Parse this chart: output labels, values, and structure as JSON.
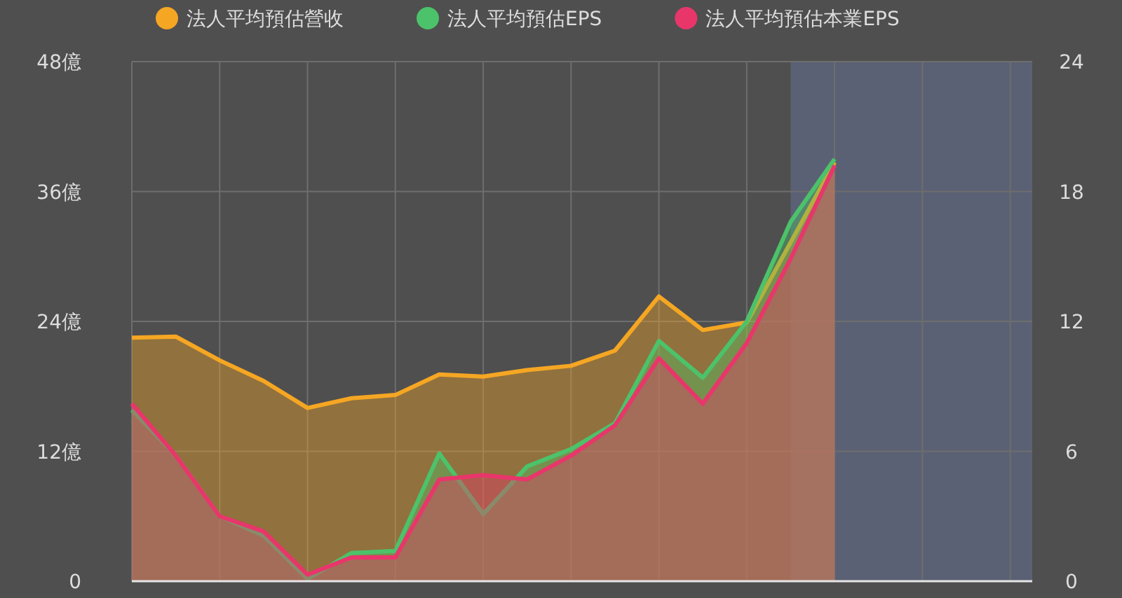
{
  "chart_data": {
    "type": "area",
    "categories": [
      null,
      null,
      null,
      null,
      null,
      null,
      null,
      null,
      null,
      null,
      null,
      null,
      null,
      null,
      null,
      null,
      null,
      null,
      null,
      null,
      null
    ],
    "ylim": [
      0,
      48
    ],
    "yticks": [
      0,
      {
        "value": 12,
        "label": "12億"
      },
      {
        "value": 24,
        "label": "24億"
      },
      {
        "value": 36,
        "label": "36億"
      },
      {
        "value": 48,
        "label": "48億"
      }
    ],
    "y2lim": [
      0,
      24
    ],
    "y2ticks": [
      0,
      6,
      12,
      18,
      24
    ],
    "grid": true,
    "legend": "top",
    "series": [
      {
        "name": "法人平均預估營收",
        "color": "#f5a623",
        "values": [
          22.5,
          22.6,
          20.4,
          18.5,
          16.0,
          16.9,
          17.2,
          19.1,
          18.9,
          19.5,
          19.9,
          21.3,
          26.3,
          23.2,
          23.9,
          31.3,
          38.7,
          null,
          null,
          null,
          null
        ]
      },
      {
        "name": "法人平均預估EPS",
        "color": "#4cc26a",
        "axis": "y2",
        "values": [
          7.9,
          5.8,
          3.0,
          2.1,
          0.1,
          1.3,
          1.4,
          5.9,
          3.1,
          5.3,
          6.1,
          7.3,
          11.1,
          9.4,
          12.0,
          16.6,
          19.5,
          null,
          null,
          null,
          null
        ]
      },
      {
        "name": "法人平均預估本業EPS",
        "color": "#e8366b",
        "axis": "y2",
        "values": [
          8.2,
          5.8,
          3.0,
          2.3,
          0.3,
          1.1,
          1.1,
          4.7,
          4.9,
          4.7,
          5.8,
          7.2,
          10.3,
          8.2,
          11.0,
          14.9,
          19.2,
          null,
          null,
          null,
          null
        ]
      }
    ]
  }
}
